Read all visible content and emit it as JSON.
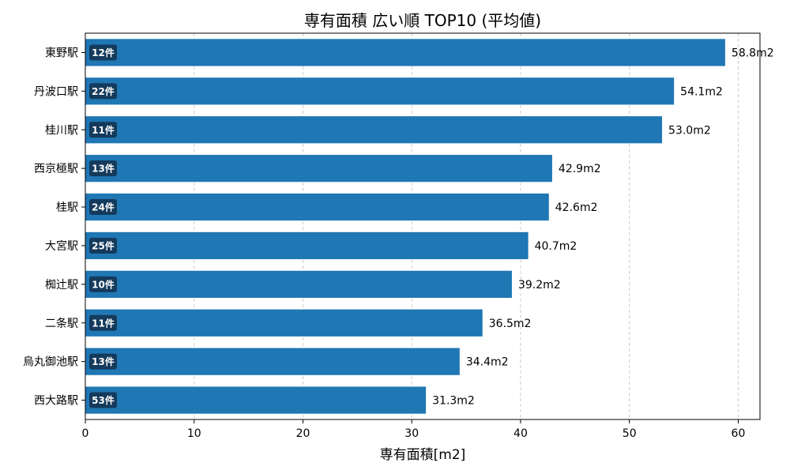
{
  "chart_data": {
    "type": "bar",
    "orientation": "horizontal",
    "title": "専有面積 広い順 TOP10 (平均値)",
    "xlabel": "専有面積[m2]",
    "ylabel": "",
    "xlim": [
      0,
      62
    ],
    "xticks": [
      0,
      10,
      20,
      30,
      40,
      50,
      60
    ],
    "grid": "x-dashed",
    "categories": [
      "東野駅",
      "丹波口駅",
      "桂川駅",
      "西京極駅",
      "桂駅",
      "大宮駅",
      "椥辻駅",
      "二条駅",
      "烏丸御池駅",
      "西大路駅"
    ],
    "values": [
      58.8,
      54.1,
      53.0,
      42.9,
      42.6,
      40.7,
      39.2,
      36.5,
      34.4,
      31.3
    ],
    "value_labels": [
      "58.8m2",
      "54.1m2",
      "53.0m2",
      "42.9m2",
      "42.6m2",
      "40.7m2",
      "39.2m2",
      "36.5m2",
      "34.4m2",
      "31.3m2"
    ],
    "count_labels": [
      "12件",
      "22件",
      "11件",
      "13件",
      "24件",
      "25件",
      "10件",
      "11件",
      "13件",
      "53件"
    ],
    "colors": {
      "bar": "#1f77b4",
      "badge": "#143a5c",
      "grid": "#cccccc"
    }
  }
}
